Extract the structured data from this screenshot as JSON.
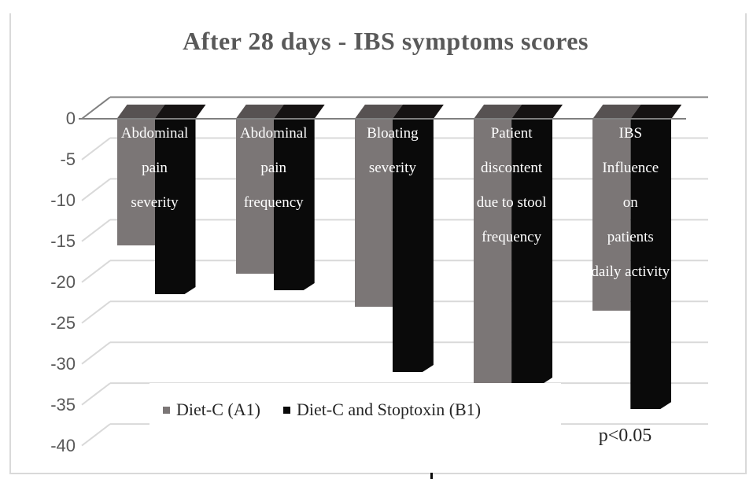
{
  "figure": {
    "title": "After 28 days - IBS symptoms scores",
    "annotation": "p<0.05"
  },
  "chart_data": {
    "type": "bar",
    "style": "3d-clustered-column",
    "orientation": "vertical-negative",
    "title": "After 28 days - IBS symptoms scores",
    "xlabel": "",
    "ylabel": "",
    "ylim": [
      0,
      -40
    ],
    "yticks": [
      0,
      -5,
      -10,
      -15,
      -20,
      -25,
      -30,
      -35,
      -40
    ],
    "grid": true,
    "legend_position": "bottom-overlay",
    "annotation": "p<0.05",
    "categories": [
      "Abdominal pain severity",
      "Abdominal pain frequency",
      "Bloating severity",
      "Patient discontent due to stool frequency",
      "IBS Influence on patients daily activity"
    ],
    "category_label_lines": [
      [
        "Abdominal",
        "pain",
        "severity"
      ],
      [
        "Abdominal",
        "pain",
        "frequency"
      ],
      [
        "Bloating",
        "severity"
      ],
      [
        "Patient",
        "discontent",
        "due to stool",
        "frequency"
      ],
      [
        "IBS",
        "Influence",
        "on",
        "patients",
        "daily activity"
      ]
    ],
    "series": [
      {
        "name": "Diet-C (A1)",
        "color": "#7b7676",
        "cap_color": "#575252",
        "values": [
          -15.5,
          -19,
          -23,
          -32.5,
          -23.5
        ]
      },
      {
        "name": "Diet-C and Stoptoxin (B1)",
        "color": "#0a0a0a",
        "cap_color": "#161313",
        "values": [
          -21.5,
          -21,
          -31,
          -32.5,
          -35.5
        ]
      }
    ]
  },
  "colors": {
    "background": "#ffffff",
    "title_text": "#595959",
    "axis_label_text": "#595959",
    "gridline": "#d9d9d9",
    "zero_line": "#808080",
    "category_text": "#ffffff",
    "legend_text": "#262626",
    "figure_border": "#d9d9d9",
    "bottom_tick": "#0a0a0a"
  }
}
